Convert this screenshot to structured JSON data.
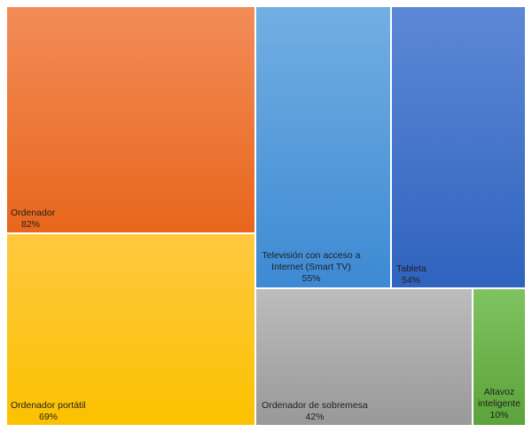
{
  "chart_data": {
    "type": "treemap",
    "title": "",
    "items": [
      {
        "label": "Ordenador",
        "value": 82,
        "value_label": "82%",
        "color": "#ee7a3a"
      },
      {
        "label": "Ordenador portátil",
        "value": 69,
        "value_label": "69%",
        "color": "#fec521"
      },
      {
        "label": "Televisión con acceso a Internet (Smart TV)",
        "label_lines": [
          "Televisión con acceso a",
          "Internet (Smart TV)"
        ],
        "value": 55,
        "value_label": "55%",
        "color": "#5b9bd5"
      },
      {
        "label": "Tableta",
        "value": 54,
        "value_label": "54%",
        "color": "#4472c4"
      },
      {
        "label": "Ordenador de sobremesa",
        "value": 42,
        "value_label": "42%",
        "color": "#a5a5a5"
      },
      {
        "label": "Altavoz inteligente",
        "label_lines": [
          "Altavoz",
          "inteligente"
        ],
        "value": 10,
        "value_label": "10%",
        "color": "#70ad47"
      }
    ]
  }
}
